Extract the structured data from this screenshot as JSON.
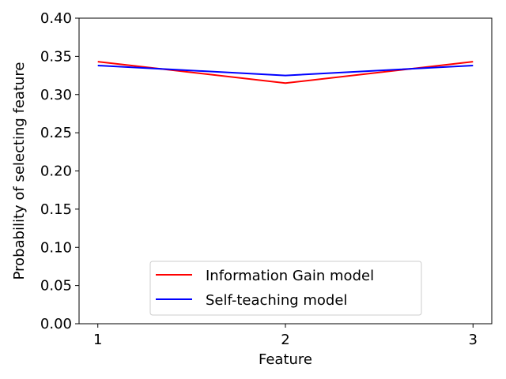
{
  "chart_data": {
    "type": "line",
    "title": "",
    "xlabel": "Feature",
    "ylabel": "Probability of selecting feature",
    "x": [
      1,
      2,
      3
    ],
    "xticks": [
      "1",
      "2",
      "3"
    ],
    "xlim": [
      0.9,
      3.1
    ],
    "ylim": [
      0.0,
      0.4
    ],
    "yticks": [
      "0.00",
      "0.05",
      "0.10",
      "0.15",
      "0.20",
      "0.25",
      "0.30",
      "0.35",
      "0.40"
    ],
    "grid": false,
    "legend_position": "lower-center",
    "series": [
      {
        "name": "Information Gain model",
        "color": "#ff0000",
        "values": [
          0.343,
          0.315,
          0.343
        ]
      },
      {
        "name": "Self-teaching model",
        "color": "#0000ff",
        "values": [
          0.338,
          0.325,
          0.338
        ]
      }
    ]
  }
}
